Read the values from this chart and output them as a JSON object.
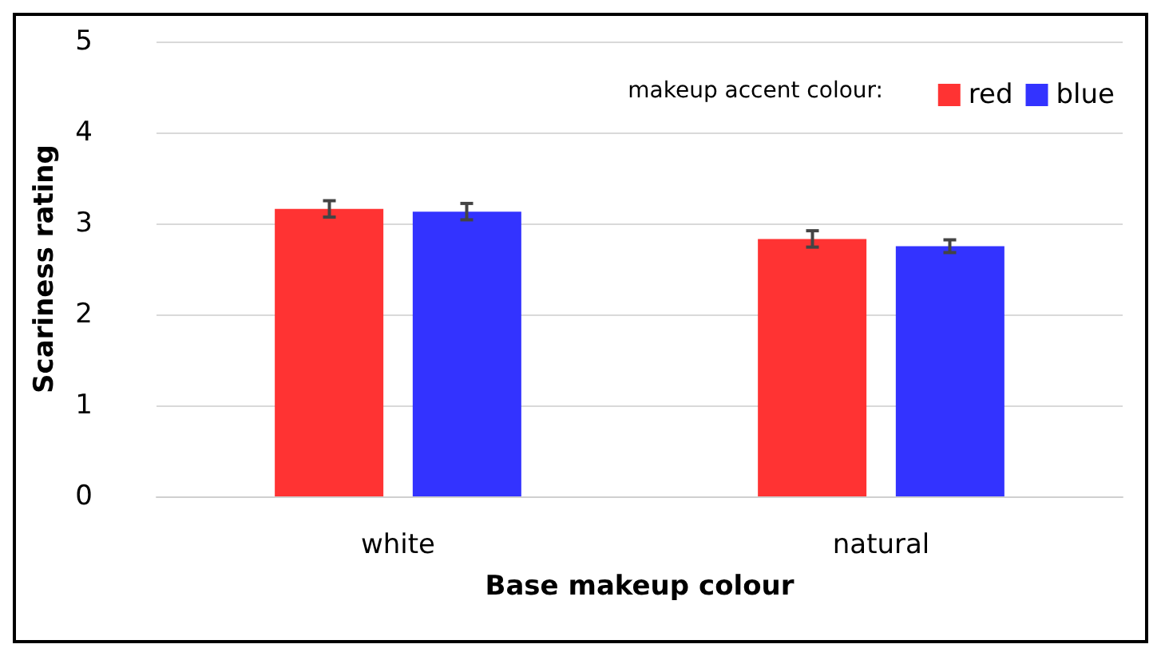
{
  "chart_data": {
    "type": "bar",
    "xlabel": "Base makeup colour",
    "ylabel": "Scariness rating",
    "legend_title": "makeup accent colour:",
    "categories": [
      "white",
      "natural"
    ],
    "series": [
      {
        "name": "red",
        "color": "#ff3333",
        "values": [
          3.16,
          2.83
        ],
        "errors": [
          0.09,
          0.09
        ]
      },
      {
        "name": "blue",
        "color": "#3333ff",
        "values": [
          3.13,
          2.75
        ],
        "errors": [
          0.09,
          0.07
        ]
      }
    ],
    "ylim": [
      0,
      5
    ],
    "yticks": [
      0,
      1,
      2,
      3,
      4,
      5
    ],
    "grid": "y",
    "legend": "top right"
  }
}
